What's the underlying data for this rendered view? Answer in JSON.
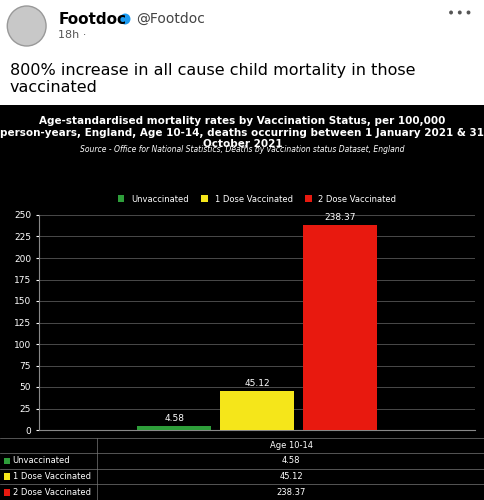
{
  "post": {
    "name": "Footdoc",
    "handle": "@Footdoc",
    "time": "18h ·",
    "text": "800% increase in all cause child mortality in those vaccinated"
  },
  "chart_data": {
    "type": "bar",
    "title": "Age-standardised mortality rates by Vaccination Status, per 100,000 person-years, England, Age 10-14, deaths occurring between 1 January 2021 & 31 October 2021",
    "subtitle": "Source - Office for National Statistics, Deaths by vaccination status Dataset, England",
    "categories": [
      "Age 10-14"
    ],
    "series": [
      {
        "name": "Unvaccinated",
        "color": "#2e9e3a",
        "values": [
          4.58
        ]
      },
      {
        "name": "1 Dose Vaccinated",
        "color": "#f5e61a",
        "values": [
          45.12
        ]
      },
      {
        "name": "2 Dose Vaccinated",
        "color": "#e8190f",
        "values": [
          238.37
        ]
      }
    ],
    "ylim": [
      0,
      250
    ],
    "yticks": [
      0,
      25,
      50,
      75,
      100,
      125,
      150,
      175,
      200,
      225,
      250
    ],
    "grid": true,
    "legend": "upper center",
    "data_labels": true
  }
}
